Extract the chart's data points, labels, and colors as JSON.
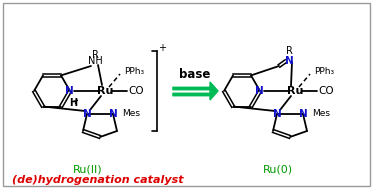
{
  "bg_color": "#ffffff",
  "border_color": "#999999",
  "arrow_color": "#00bb55",
  "black": "#000000",
  "blue": "#1111cc",
  "green": "#009900",
  "red": "#dd0000",
  "label_left": "Ru(II)",
  "label_right": "Ru(0)",
  "arrow_label": "base",
  "title_text": "(de)hydrogenation catalyst",
  "figsize": [
    3.73,
    1.89
  ],
  "dpi": 100
}
